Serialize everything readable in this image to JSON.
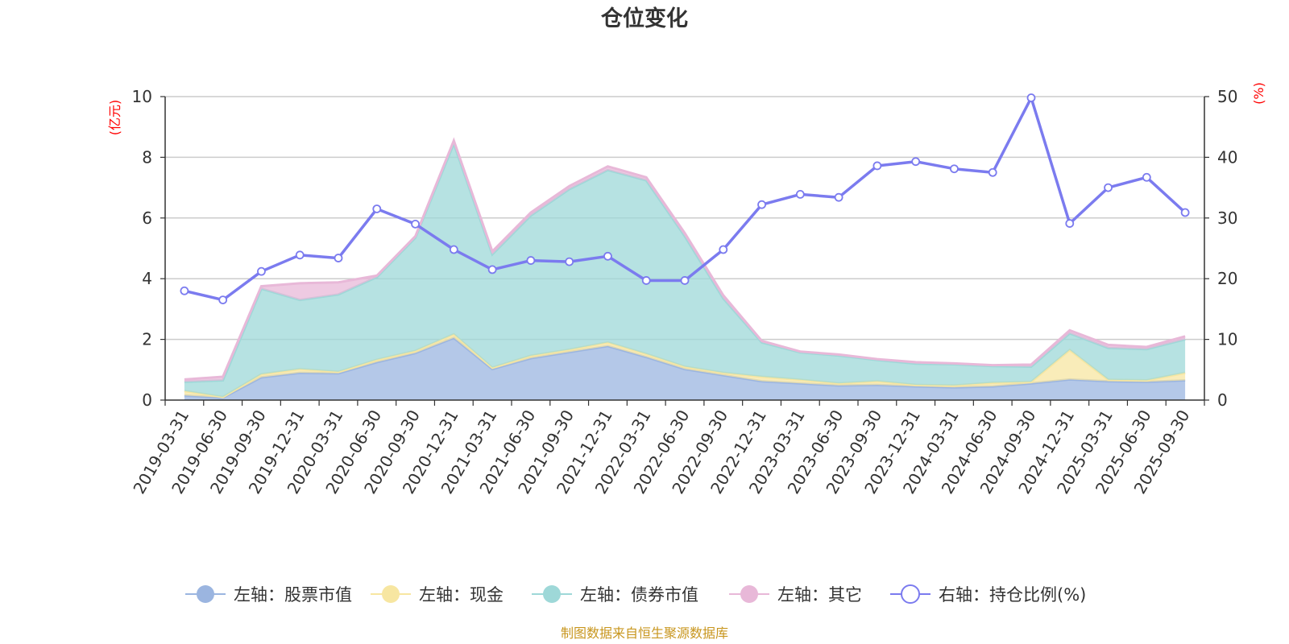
{
  "chart_data": {
    "type": "area",
    "title": "仓位变化",
    "categories": [
      "2019-03-31",
      "2019-06-30",
      "2019-09-30",
      "2019-12-31",
      "2020-03-31",
      "2020-06-30",
      "2020-09-30",
      "2020-12-31",
      "2021-03-31",
      "2021-06-30",
      "2021-09-30",
      "2021-12-31",
      "2022-03-31",
      "2022-06-30",
      "2022-09-30",
      "2022-12-31",
      "2023-03-31",
      "2023-06-30",
      "2023-09-30",
      "2023-12-31",
      "2024-03-31",
      "2024-06-30",
      "2024-09-30",
      "2024-12-31",
      "2025-03-31",
      "2025-06-30",
      "2025-09-30"
    ],
    "left_axis": {
      "unit": "(亿元)",
      "ylim": [
        0,
        10
      ],
      "ticks": [
        0,
        2,
        4,
        6,
        8,
        10
      ]
    },
    "right_axis": {
      "unit": "(%)",
      "ylim": [
        0,
        50
      ],
      "ticks": [
        0,
        10,
        20,
        30,
        40,
        50
      ]
    },
    "series": [
      {
        "name": "左轴：股票市值",
        "axis": "left",
        "kind": "stacked-area",
        "color": "#9bb5e0",
        "values": [
          0.15,
          0.08,
          0.75,
          0.9,
          0.88,
          1.25,
          1.55,
          2.05,
          1.02,
          1.38,
          1.58,
          1.78,
          1.42,
          1.02,
          0.82,
          0.62,
          0.55,
          0.48,
          0.5,
          0.45,
          0.42,
          0.45,
          0.55,
          0.68,
          0.62,
          0.6,
          0.65
        ]
      },
      {
        "name": "左轴：现金",
        "axis": "left",
        "kind": "stacked-area",
        "color": "#f7e6a1",
        "values": [
          0.15,
          0.02,
          0.1,
          0.12,
          0.05,
          0.08,
          0.07,
          0.12,
          0.05,
          0.08,
          0.08,
          0.12,
          0.1,
          0.08,
          0.08,
          0.15,
          0.12,
          0.07,
          0.12,
          0.05,
          0.06,
          0.12,
          0.05,
          0.97,
          0.05,
          0.05,
          0.25
        ]
      },
      {
        "name": "左轴：债券市值",
        "axis": "left",
        "kind": "stacked-area",
        "color": "#9ed8d8",
        "values": [
          0.3,
          0.55,
          2.82,
          2.28,
          2.55,
          2.72,
          3.73,
          6.28,
          3.73,
          4.62,
          5.29,
          5.68,
          5.72,
          4.3,
          2.45,
          1.13,
          0.9,
          0.92,
          0.7,
          0.7,
          0.7,
          0.55,
          0.5,
          0.55,
          1.05,
          1.03,
          1.1
        ]
      },
      {
        "name": "左轴：其它",
        "axis": "left",
        "kind": "stacked-area",
        "color": "#e8b8d8",
        "values": [
          0.08,
          0.12,
          0.08,
          0.55,
          0.4,
          0.05,
          0.05,
          0.1,
          0.1,
          0.1,
          0.1,
          0.12,
          0.1,
          0.1,
          0.1,
          0.05,
          0.03,
          0.03,
          0.03,
          0.05,
          0.03,
          0.03,
          0.07,
          0.1,
          0.1,
          0.07,
          0.1
        ]
      },
      {
        "name": "右轴：持仓比例(%)",
        "axis": "right",
        "kind": "line",
        "color": "#7b7bef",
        "values": [
          18.0,
          16.5,
          21.2,
          23.9,
          23.4,
          31.5,
          29.0,
          24.8,
          21.5,
          23.0,
          22.8,
          23.7,
          19.7,
          19.7,
          24.8,
          32.2,
          33.9,
          33.4,
          38.6,
          39.3,
          38.1,
          37.5,
          49.8,
          29.1,
          35.0,
          36.7,
          30.9
        ]
      }
    ],
    "legend_position": "bottom",
    "grid": true
  },
  "source_note": "制图数据来自恒生聚源数据库"
}
